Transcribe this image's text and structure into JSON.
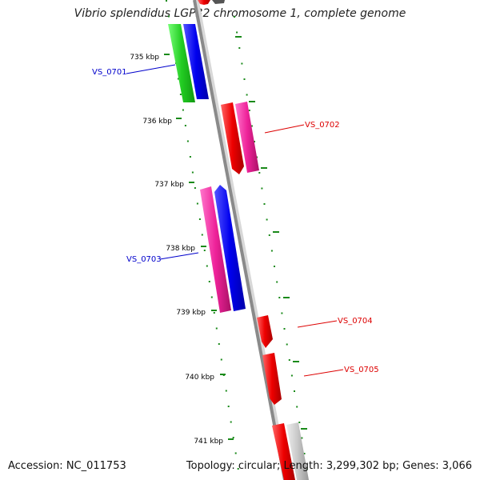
{
  "title": "Vibrio splendidus LGP32 chromosome 1, complete genome",
  "footer": {
    "accession": "Accession: NC_011753",
    "summary": "Topology: circular; Length: 3,299,302 bp; Genes: 3,066"
  },
  "ticks": [
    {
      "label": "735 kbp"
    },
    {
      "label": "736 kbp"
    },
    {
      "label": "737 kbp"
    },
    {
      "label": "738 kbp"
    },
    {
      "label": "739 kbp"
    },
    {
      "label": "740 kbp"
    },
    {
      "label": "741 kbp"
    }
  ],
  "gene_labels": [
    {
      "label": "VS_0701",
      "color": "#0000cc"
    },
    {
      "label": "VS_0702",
      "color": "#dd0000"
    },
    {
      "label": "VS_0703",
      "color": "#0000cc"
    },
    {
      "label": "VS_0704",
      "color": "#dd0000"
    },
    {
      "label": "VS_0705",
      "color": "#dd0000"
    }
  ],
  "colors": {
    "backbone": "#8a8a8a",
    "gc_skew_dots": "#1a8a1a",
    "red_cds": "#ee0000",
    "pink_cds": "#ee2299",
    "blue_cds": "#0000ee",
    "green_cds": "#22cc22",
    "grey_feature": "#c8c8c8"
  }
}
